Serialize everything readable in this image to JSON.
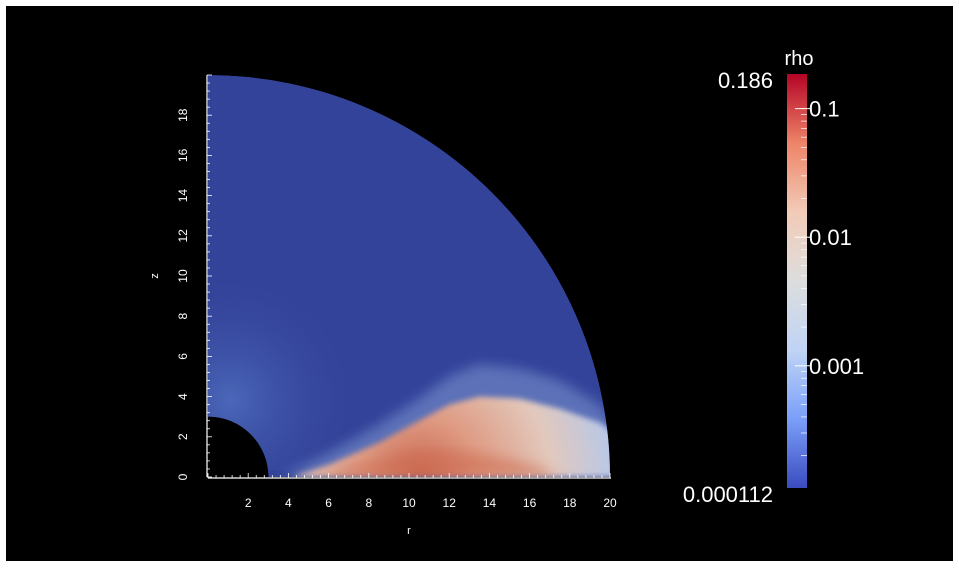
{
  "chart_data": {
    "type": "heatmap",
    "title": "",
    "xlabel": "r",
    "ylabel": "z",
    "xlim": [
      0,
      20
    ],
    "ylim": [
      0,
      20
    ],
    "x_ticks": [
      "2",
      "4",
      "6",
      "8",
      "10",
      "12",
      "14",
      "16",
      "18",
      "20"
    ],
    "y_ticks": [
      "0",
      "2",
      "4",
      "6",
      "8",
      "10",
      "12",
      "14",
      "16",
      "18"
    ],
    "domain": {
      "shape": "quarter-annulus",
      "inner_radius": 3,
      "outer_radius": 20
    },
    "colorbar": {
      "title": "rho",
      "scale": "log",
      "min_label": "0.000112",
      "max_label": "0.186",
      "min": 0.000112,
      "max": 0.186,
      "tick_labels": [
        "0.1",
        "0.01",
        "0.001"
      ],
      "ticks": [
        0.1,
        0.01,
        0.001
      ],
      "colormap": [
        "#3b4cc0",
        "#7b9ff9",
        "#c0d4f5",
        "#dddddd",
        "#f2cbb7",
        "#ee8468",
        "#b40426"
      ]
    },
    "background_color": "#000000"
  }
}
